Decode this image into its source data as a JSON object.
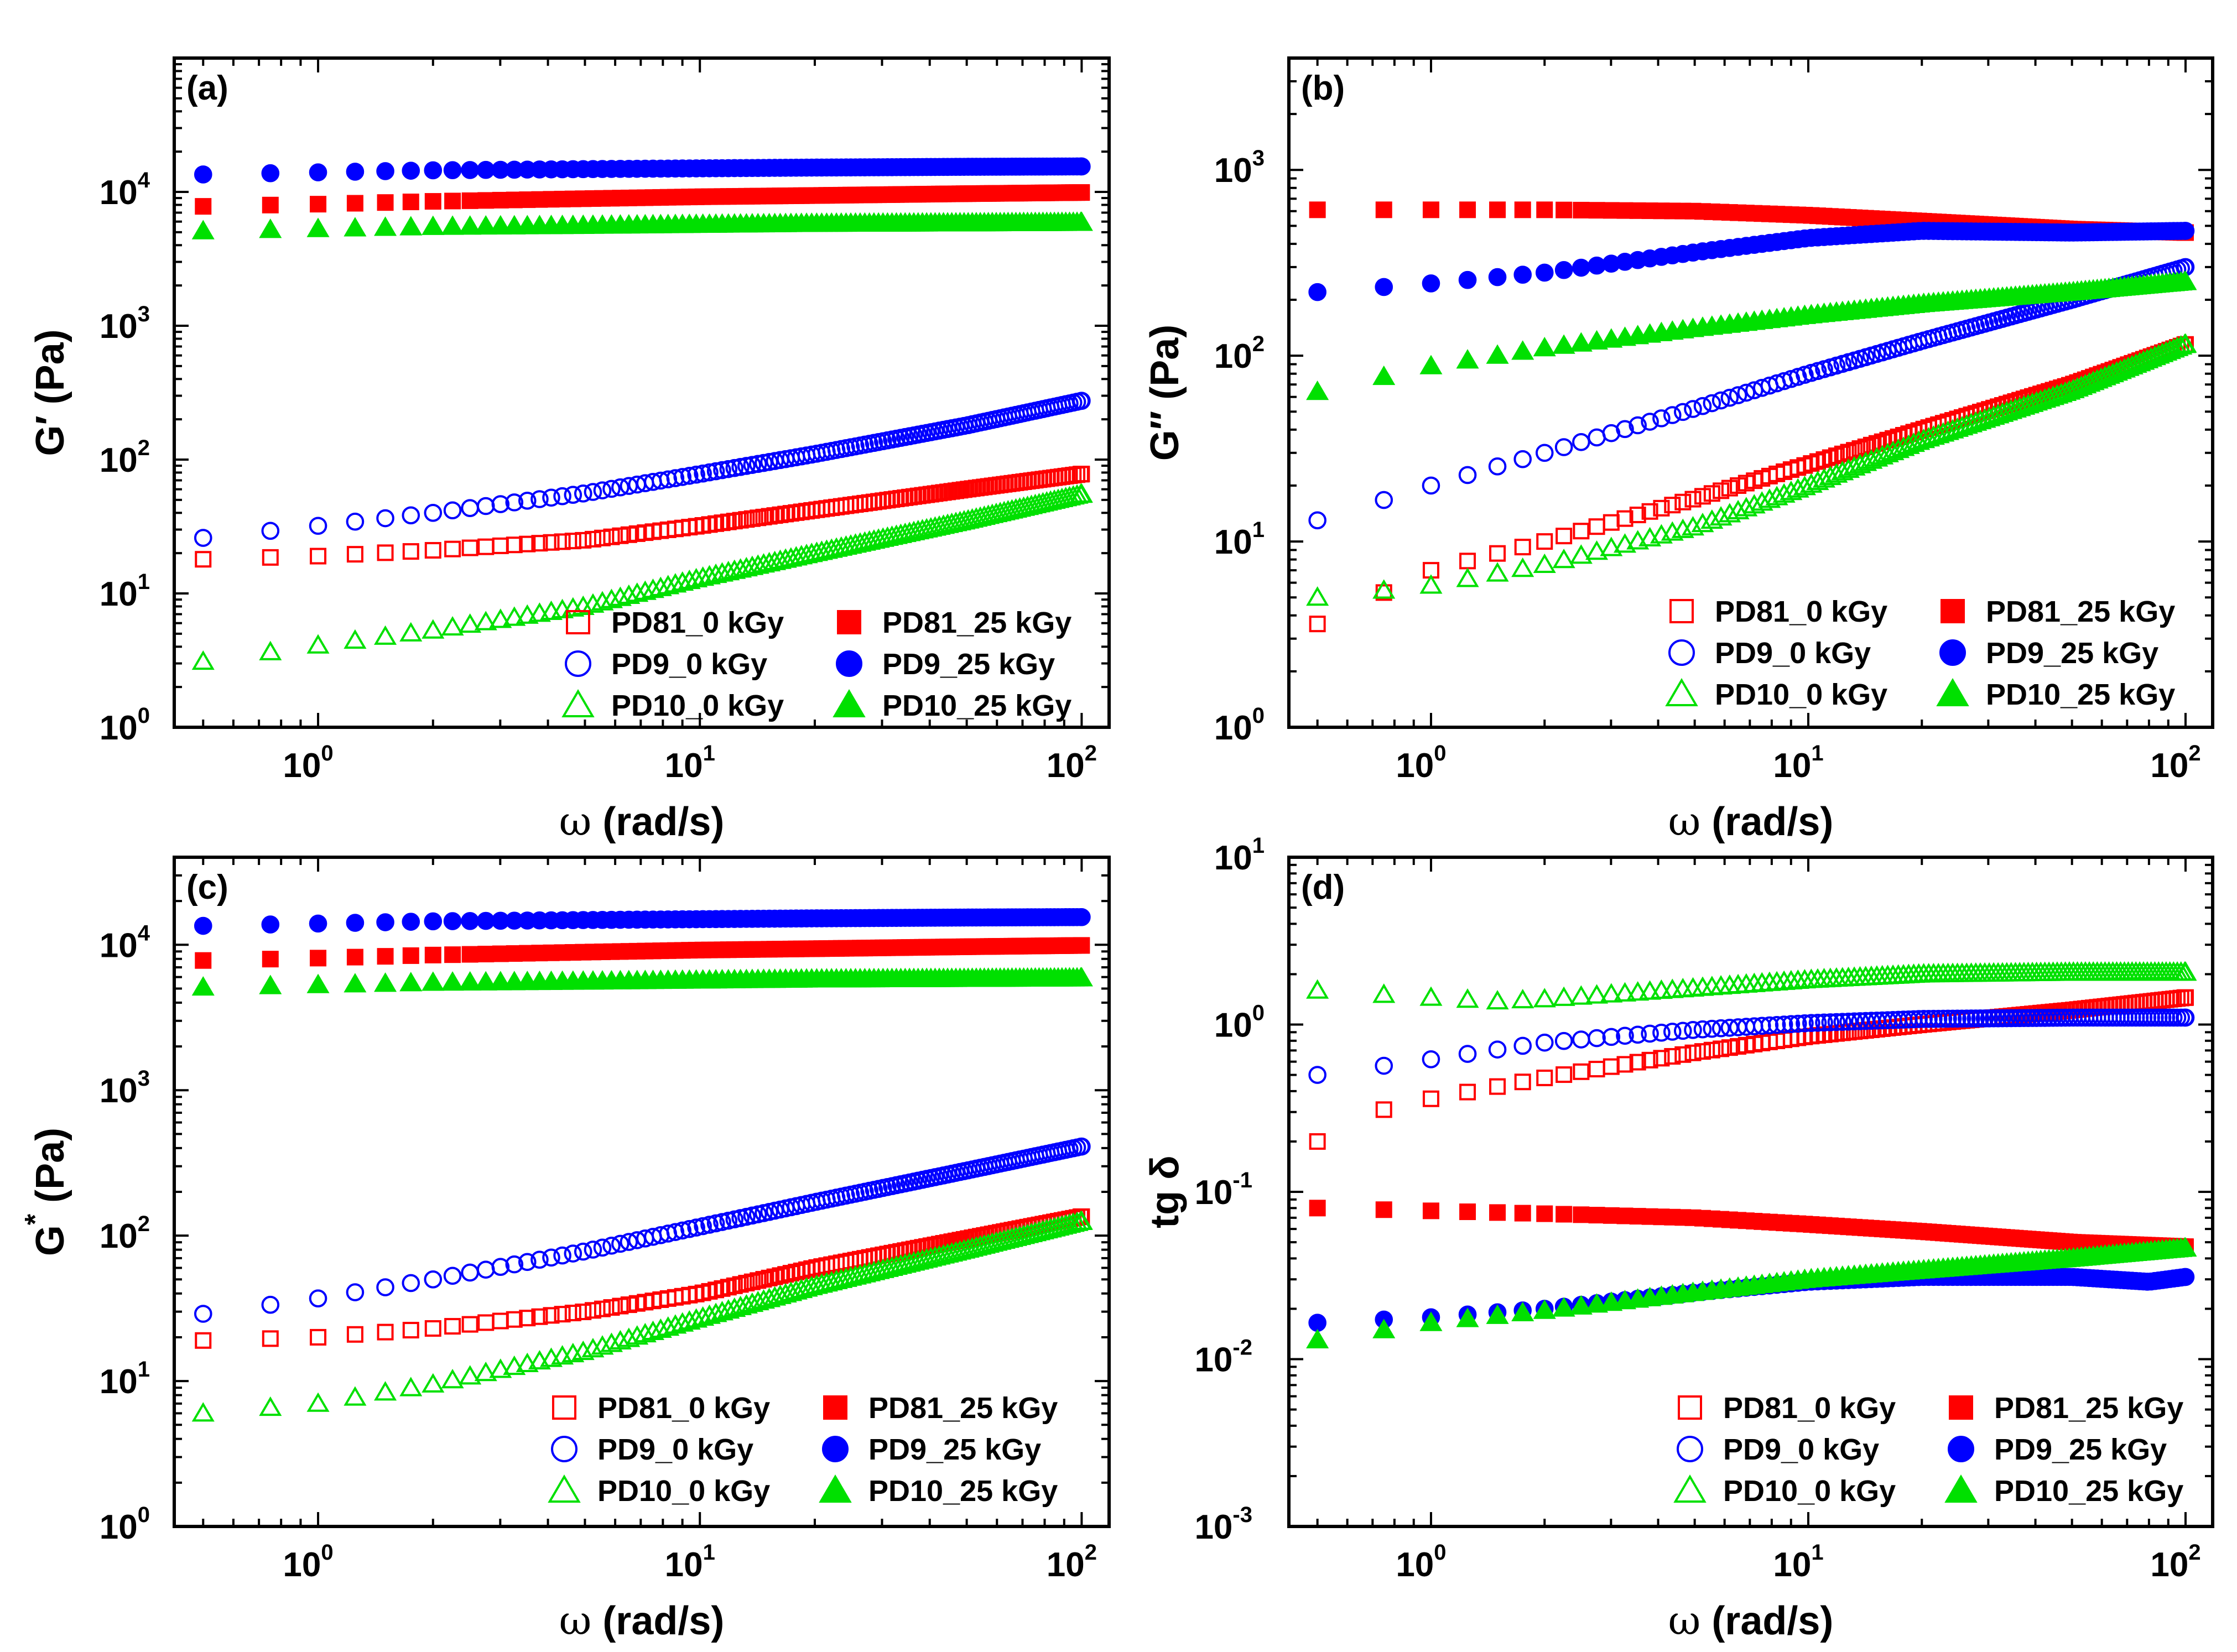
{
  "figure": {
    "description_note": ""
  },
  "legend_common": {
    "entries": [
      {
        "name": "PD81_0 kGy",
        "color": "#FF0000",
        "shape": "square",
        "filled": false
      },
      {
        "name": "PD9_0 kGy",
        "color": "#0000FF",
        "shape": "circle",
        "filled": false
      },
      {
        "name": "PD10_0 kGy",
        "color": "#00E000",
        "shape": "triangle",
        "filled": false
      },
      {
        "name": "PD81_25 kGy",
        "color": "#FF0000",
        "shape": "square",
        "filled": true
      },
      {
        "name": "PD9_25 kGy",
        "color": "#0000FF",
        "shape": "circle",
        "filled": true
      },
      {
        "name": "PD10_25 kGy",
        "color": "#00E000",
        "shape": "triangle",
        "filled": true
      }
    ]
  },
  "chart_data": [
    {
      "id": "a",
      "type": "scatter",
      "panel_label": "(a)",
      "xlabel_symbol": "ω",
      "xlabel": " (rad/s)",
      "ylabel": "G′ (Pa)",
      "xscale": "log",
      "yscale": "log",
      "xlim": [
        0.42,
        118
      ],
      "ylim": [
        1,
        100000
      ],
      "x_ticks": [
        {
          "base": "10",
          "exp": "0"
        },
        {
          "base": "10",
          "exp": "1"
        },
        {
          "base": "10",
          "exp": "2"
        }
      ],
      "y_ticks": [
        {
          "base": "10",
          "exp": "0"
        },
        {
          "base": "10",
          "exp": "1"
        },
        {
          "base": "10",
          "exp": "2"
        },
        {
          "base": "10",
          "exp": "3"
        },
        {
          "base": "10",
          "exp": "4"
        }
      ],
      "legend": {
        "position": "bottom-right"
      },
      "series": [
        {
          "name": "PD81_0 kGy",
          "anchors": [
            [
              0.5,
              18
            ],
            [
              1,
              19
            ],
            [
              2,
              21
            ],
            [
              5,
              25
            ],
            [
              10,
              32
            ],
            [
              20,
              42
            ],
            [
              50,
              60
            ],
            [
              100,
              78
            ]
          ]
        },
        {
          "name": "PD9_0 kGy",
          "anchors": [
            [
              0.5,
              26
            ],
            [
              1,
              32
            ],
            [
              2,
              40
            ],
            [
              5,
              56
            ],
            [
              10,
              78
            ],
            [
              20,
              110
            ],
            [
              50,
              180
            ],
            [
              100,
              275
            ]
          ]
        },
        {
          "name": "PD10_0 kGy",
          "anchors": [
            [
              0.5,
              3.1
            ],
            [
              1,
              4.1
            ],
            [
              2,
              5.3
            ],
            [
              5,
              8
            ],
            [
              10,
              13
            ],
            [
              20,
              20
            ],
            [
              50,
              35
            ],
            [
              100,
              55
            ]
          ]
        },
        {
          "name": "PD81_25 kGy",
          "anchors": [
            [
              0.5,
              7800
            ],
            [
              1,
              8100
            ],
            [
              2,
              8500
            ],
            [
              5,
              8900
            ],
            [
              10,
              9200
            ],
            [
              20,
              9400
            ],
            [
              50,
              9700
            ],
            [
              100,
              9900
            ]
          ]
        },
        {
          "name": "PD9_25 kGy",
          "anchors": [
            [
              0.5,
              13500
            ],
            [
              1,
              14000
            ],
            [
              2,
              14500
            ],
            [
              5,
              14800
            ],
            [
              10,
              15000
            ],
            [
              20,
              15200
            ],
            [
              50,
              15400
            ],
            [
              100,
              15500
            ]
          ]
        },
        {
          "name": "PD10_25 kGy",
          "anchors": [
            [
              0.5,
              5100
            ],
            [
              1,
              5300
            ],
            [
              2,
              5500
            ],
            [
              5,
              5600
            ],
            [
              10,
              5700
            ],
            [
              20,
              5800
            ],
            [
              50,
              5850
            ],
            [
              100,
              5900
            ]
          ]
        }
      ]
    },
    {
      "id": "b",
      "type": "scatter",
      "panel_label": "(b)",
      "xlabel_symbol": "ω",
      "xlabel": " (rad/s)",
      "ylabel": "G″ (Pa)",
      "xscale": "log",
      "yscale": "log",
      "xlim": [
        0.42,
        118
      ],
      "ylim": [
        1,
        4000
      ],
      "x_ticks": [
        {
          "base": "10",
          "exp": "0"
        },
        {
          "base": "10",
          "exp": "1"
        },
        {
          "base": "10",
          "exp": "2"
        }
      ],
      "y_ticks": [
        {
          "base": "10",
          "exp": "0"
        },
        {
          "base": "10",
          "exp": "1"
        },
        {
          "base": "10",
          "exp": "2"
        },
        {
          "base": "10",
          "exp": "3"
        }
      ],
      "legend": {
        "position": "bottom-right"
      },
      "series": [
        {
          "name": "PD81_0 kGy",
          "anchors": [
            [
              0.5,
              3.6
            ],
            [
              1,
              7
            ],
            [
              2,
              10
            ],
            [
              5,
              17
            ],
            [
              10,
              26
            ],
            [
              20,
              40
            ],
            [
              50,
              70
            ],
            [
              100,
              115
            ]
          ]
        },
        {
          "name": "PD9_0 kGy",
          "anchors": [
            [
              0.5,
              13
            ],
            [
              1,
              20
            ],
            [
              2,
              30
            ],
            [
              5,
              52
            ],
            [
              10,
              80
            ],
            [
              20,
              120
            ],
            [
              50,
              200
            ],
            [
              100,
              300
            ]
          ]
        },
        {
          "name": "PD10_0 kGy",
          "anchors": [
            [
              0.5,
              5
            ],
            [
              1,
              5.8
            ],
            [
              2,
              7.5
            ],
            [
              5,
              12
            ],
            [
              10,
              20
            ],
            [
              20,
              35
            ],
            [
              50,
              65
            ],
            [
              100,
              115
            ]
          ]
        },
        {
          "name": "PD81_25 kGy",
          "anchors": [
            [
              0.5,
              610
            ],
            [
              1,
              610
            ],
            [
              2,
              610
            ],
            [
              5,
              600
            ],
            [
              10,
              570
            ],
            [
              20,
              530
            ],
            [
              50,
              480
            ],
            [
              100,
              460
            ]
          ]
        },
        {
          "name": "PD9_25 kGy",
          "anchors": [
            [
              0.5,
              220
            ],
            [
              1,
              245
            ],
            [
              2,
              280
            ],
            [
              5,
              360
            ],
            [
              10,
              430
            ],
            [
              20,
              470
            ],
            [
              50,
              460
            ],
            [
              100,
              470
            ]
          ]
        },
        {
          "name": "PD10_25 kGy",
          "anchors": [
            [
              0.5,
              64
            ],
            [
              1,
              88
            ],
            [
              2,
              110
            ],
            [
              5,
              140
            ],
            [
              10,
              165
            ],
            [
              20,
              190
            ],
            [
              50,
              220
            ],
            [
              100,
              250
            ]
          ]
        }
      ]
    },
    {
      "id": "c",
      "type": "scatter",
      "panel_label": "(c)",
      "xlabel_symbol": "ω",
      "xlabel": " (rad/s)",
      "ylabel": "G * (Pa)",
      "ylabel_main": "G",
      "ylabel_sup": "*",
      "ylabel_rest": " (Pa)",
      "xscale": "log",
      "yscale": "log",
      "xlim": [
        0.42,
        118
      ],
      "ylim": [
        1,
        40000
      ],
      "x_ticks": [
        {
          "base": "10",
          "exp": "0"
        },
        {
          "base": "10",
          "exp": "1"
        },
        {
          "base": "10",
          "exp": "2"
        }
      ],
      "y_ticks": [
        {
          "base": "10",
          "exp": "0"
        },
        {
          "base": "10",
          "exp": "1"
        },
        {
          "base": "10",
          "exp": "2"
        },
        {
          "base": "10",
          "exp": "3"
        },
        {
          "base": "10",
          "exp": "4"
        }
      ],
      "legend": {
        "position": "bottom-right"
      },
      "series": [
        {
          "name": "PD81_0 kGy",
          "anchors": [
            [
              0.5,
              19
            ],
            [
              1,
              20
            ],
            [
              2,
              23
            ],
            [
              5,
              30
            ],
            [
              10,
              40
            ],
            [
              20,
              60
            ],
            [
              50,
              95
            ],
            [
              100,
              135
            ]
          ]
        },
        {
          "name": "PD9_0 kGy",
          "anchors": [
            [
              0.5,
              29
            ],
            [
              1,
              37
            ],
            [
              2,
              50
            ],
            [
              5,
              78
            ],
            [
              10,
              115
            ],
            [
              20,
              170
            ],
            [
              50,
              280
            ],
            [
              100,
              410
            ]
          ]
        },
        {
          "name": "PD10_0 kGy",
          "anchors": [
            [
              0.5,
              6
            ],
            [
              1,
              7
            ],
            [
              2,
              9.5
            ],
            [
              5,
              16
            ],
            [
              10,
              27
            ],
            [
              20,
              45
            ],
            [
              50,
              80
            ],
            [
              100,
              125
            ]
          ]
        },
        {
          "name": "PD81_25 kGy",
          "anchors": [
            [
              0.5,
              7800
            ],
            [
              1,
              8100
            ],
            [
              2,
              8500
            ],
            [
              5,
              8900
            ],
            [
              10,
              9200
            ],
            [
              20,
              9400
            ],
            [
              50,
              9700
            ],
            [
              100,
              9900
            ]
          ]
        },
        {
          "name": "PD9_25 kGy",
          "anchors": [
            [
              0.5,
              13500
            ],
            [
              1,
              14000
            ],
            [
              2,
              14500
            ],
            [
              5,
              14800
            ],
            [
              10,
              15000
            ],
            [
              20,
              15200
            ],
            [
              50,
              15400
            ],
            [
              100,
              15500
            ]
          ]
        },
        {
          "name": "PD10_25 kGy",
          "anchors": [
            [
              0.5,
              5100
            ],
            [
              1,
              5300
            ],
            [
              2,
              5500
            ],
            [
              5,
              5600
            ],
            [
              10,
              5700
            ],
            [
              20,
              5800
            ],
            [
              50,
              5850
            ],
            [
              100,
              5900
            ]
          ]
        }
      ]
    },
    {
      "id": "d",
      "type": "scatter",
      "panel_label": "(d)",
      "xlabel_symbol": "ω",
      "xlabel": " (rad/s)",
      "ylabel": "tg δ",
      "xscale": "log",
      "yscale": "log",
      "xlim": [
        0.42,
        118
      ],
      "ylim": [
        0.001,
        10
      ],
      "x_ticks": [
        {
          "base": "10",
          "exp": "0"
        },
        {
          "base": "10",
          "exp": "1"
        },
        {
          "base": "10",
          "exp": "2"
        }
      ],
      "y_ticks": [
        {
          "base": "10",
          "exp": "-3"
        },
        {
          "base": "10",
          "exp": "-2"
        },
        {
          "base": "10",
          "exp": "-1"
        },
        {
          "base": "10",
          "exp": "0"
        },
        {
          "base": "10",
          "exp": "1"
        }
      ],
      "legend": {
        "position": "bottom-right"
      },
      "series": [
        {
          "name": "PD81_0 kGy",
          "anchors": [
            [
              0.5,
              0.2
            ],
            [
              0.75,
              0.31
            ],
            [
              1,
              0.36
            ],
            [
              2,
              0.48
            ],
            [
              5,
              0.68
            ],
            [
              10,
              0.85
            ],
            [
              20,
              1.0
            ],
            [
              50,
              1.22
            ],
            [
              100,
              1.45
            ]
          ]
        },
        {
          "name": "PD9_0 kGy",
          "anchors": [
            [
              0.5,
              0.5
            ],
            [
              1,
              0.62
            ],
            [
              2,
              0.78
            ],
            [
              5,
              0.93
            ],
            [
              10,
              1.02
            ],
            [
              20,
              1.08
            ],
            [
              50,
              1.1
            ],
            [
              100,
              1.1
            ]
          ]
        },
        {
          "name": "PD10_0 kGy",
          "anchors": [
            [
              0.5,
              1.6
            ],
            [
              1,
              1.45
            ],
            [
              1.5,
              1.38
            ],
            [
              2,
              1.42
            ],
            [
              5,
              1.65
            ],
            [
              10,
              1.85
            ],
            [
              20,
              2.0
            ],
            [
              50,
              2.05
            ],
            [
              100,
              2.05
            ]
          ]
        },
        {
          "name": "PD81_25 kGy",
          "anchors": [
            [
              0.5,
              0.08
            ],
            [
              1,
              0.077
            ],
            [
              2,
              0.074
            ],
            [
              5,
              0.07
            ],
            [
              10,
              0.064
            ],
            [
              20,
              0.058
            ],
            [
              50,
              0.05
            ],
            [
              100,
              0.047
            ]
          ]
        },
        {
          "name": "PD9_25 kGy",
          "anchors": [
            [
              0.5,
              0.0165
            ],
            [
              1,
              0.0178
            ],
            [
              2,
              0.02
            ],
            [
              5,
              0.025
            ],
            [
              10,
              0.029
            ],
            [
              20,
              0.031
            ],
            [
              50,
              0.031
            ],
            [
              80,
              0.029
            ],
            [
              100,
              0.031
            ]
          ]
        },
        {
          "name": "PD10_25 kGy",
          "anchors": [
            [
              0.5,
              0.013
            ],
            [
              1,
              0.0165
            ],
            [
              2,
              0.0195
            ],
            [
              5,
              0.025
            ],
            [
              10,
              0.03
            ],
            [
              20,
              0.034
            ],
            [
              50,
              0.04
            ],
            [
              100,
              0.046
            ]
          ]
        }
      ]
    }
  ]
}
